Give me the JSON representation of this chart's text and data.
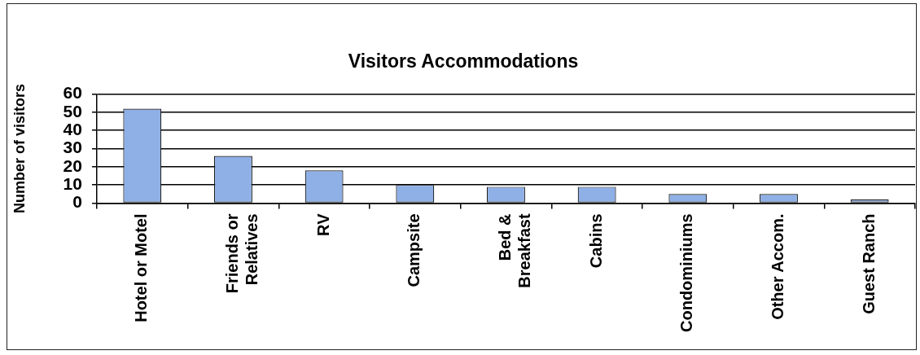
{
  "chart_data": {
    "type": "bar",
    "title": "Visitors Accommodations",
    "ylabel": "Number of visitors",
    "categories": [
      "Hotel or Motel",
      "Friends or Relatives",
      "RV",
      "Campsite",
      "Bed & Breakfast",
      "Cabins",
      "Condominiums",
      "Other Accom.",
      "Guest Ranch"
    ],
    "values": [
      52,
      26,
      18,
      10,
      9,
      9,
      5,
      5,
      2
    ],
    "color": "#8eb0e6",
    "ylim": [
      0,
      60
    ],
    "yticks": [
      0,
      10,
      20,
      30,
      40,
      50,
      60
    ],
    "grid": "y"
  }
}
